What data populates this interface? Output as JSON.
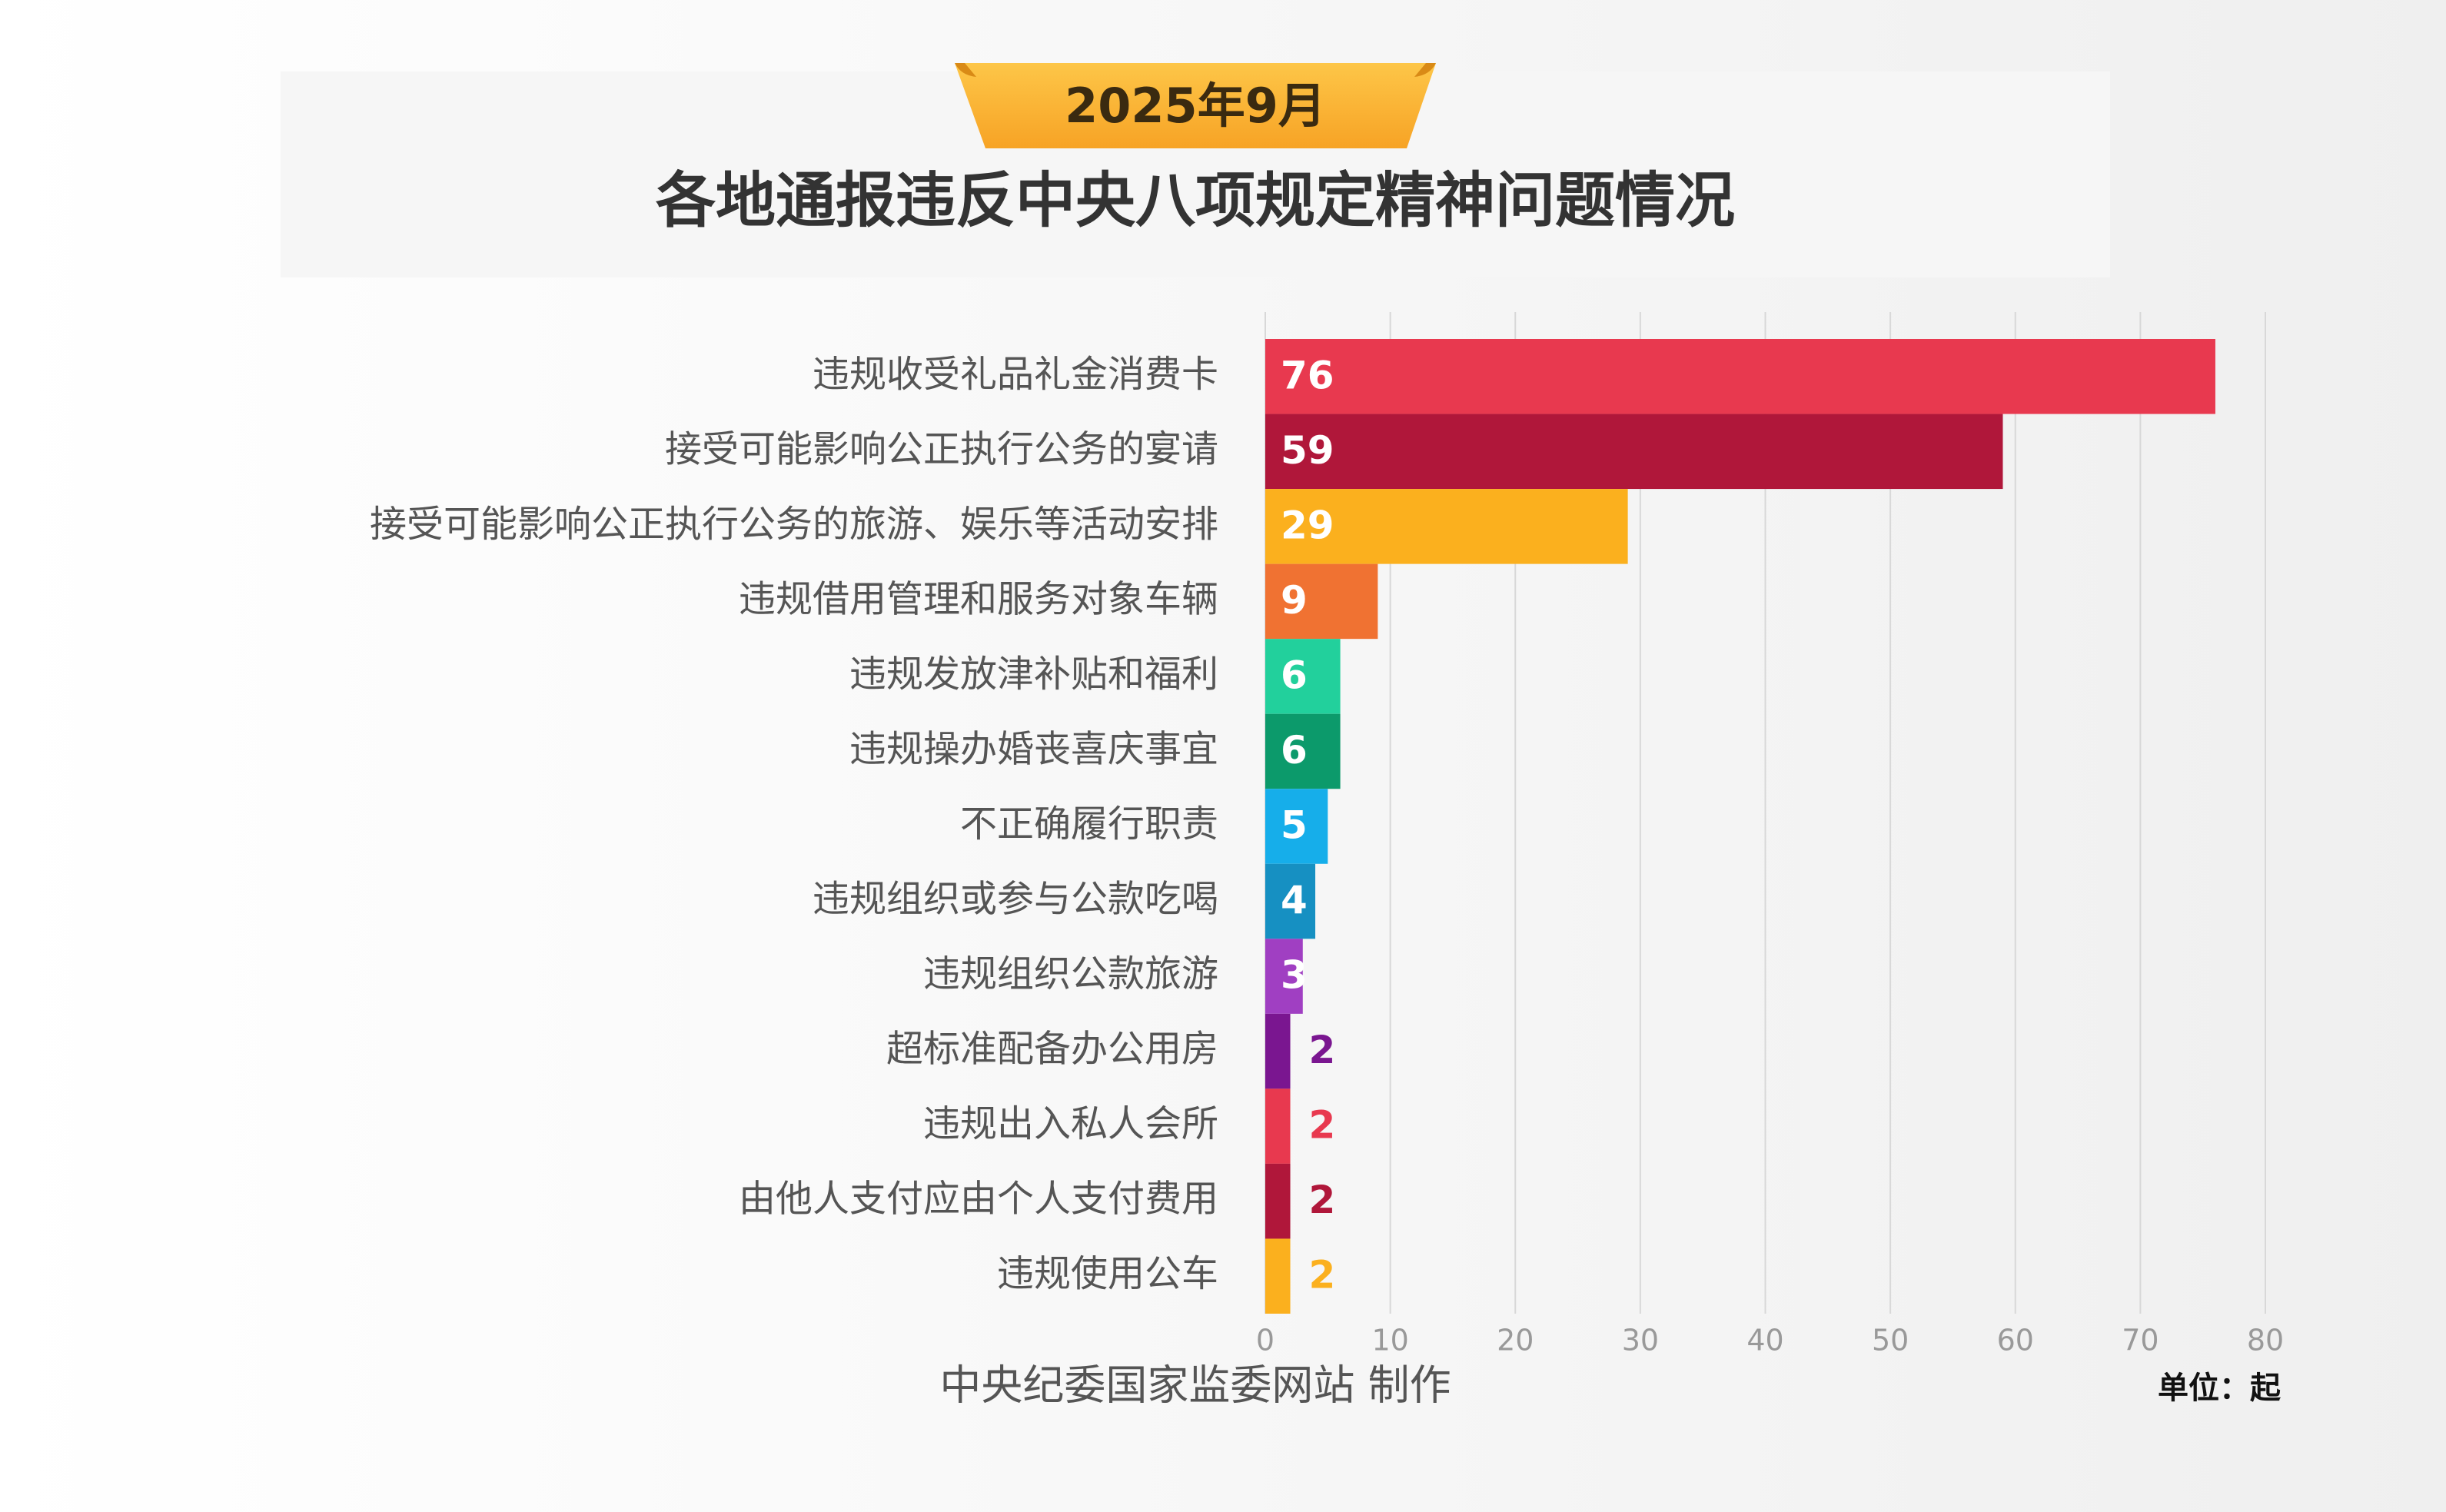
{
  "chart_data": {
    "type": "hbar",
    "subtitle": "2025年9月",
    "title": "各地通报违反中央八项规定精神问题情况",
    "categories": [
      "违规收受礼品礼金消费卡",
      "接受可能影响公正执行公务的宴请",
      "接受可能影响公正执行公务的旅游、娱乐等活动安排",
      "违规借用管理和服务对象车辆",
      "违规发放津补贴和福利",
      "违规操办婚丧喜庆事宜",
      "不正确履行职责",
      "违规组织或参与公款吃喝",
      "违规组织公款旅游",
      "超标准配备办公用房",
      "违规出入私人会所",
      "由他人支付应由个人支付费用",
      "违规使用公车"
    ],
    "values": [
      76,
      59,
      29,
      9,
      6,
      6,
      5,
      4,
      3,
      2,
      2,
      2,
      2
    ],
    "colors": [
      "#e8394f",
      "#b0173a",
      "#fbb01e",
      "#f07232",
      "#22d09c",
      "#0c9a6b",
      "#16aeea",
      "#1690c2",
      "#a03fc2",
      "#7a1690",
      "#e8394f",
      "#b0173a",
      "#fbb01e"
    ],
    "xlim": [
      0,
      80
    ],
    "xticks": [
      0,
      10,
      20,
      30,
      40,
      50,
      60,
      70,
      80
    ],
    "grid": true,
    "source": "中央纪委国家监委网站 制作",
    "unit": "单位：起"
  }
}
